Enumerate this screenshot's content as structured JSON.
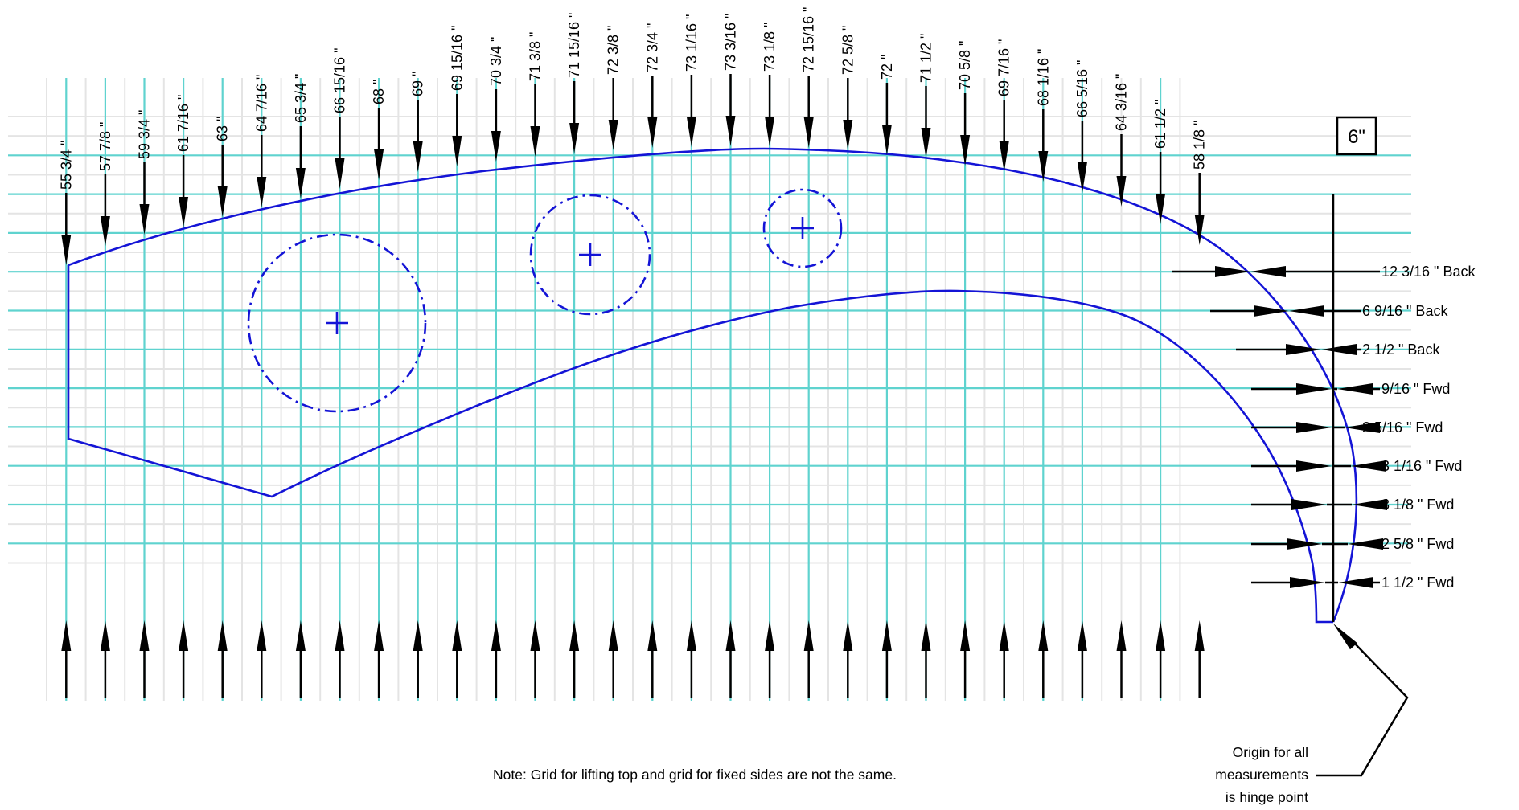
{
  "scale_label": "6\"",
  "top_measurements": [
    "55 3/4 \"",
    "57 7/8 \"",
    "59 3/4 \"",
    "61 7/16 \"",
    "63 \"",
    "64 7/16 \"",
    "65 3/4 \"",
    "66 15/16 \"",
    "68 \"",
    "69 \"",
    "69 15/16 \"",
    "70 3/4 \"",
    "71 3/8 \"",
    "71 15/16 \"",
    "72 3/8 \"",
    "72 3/4 \"",
    "73 1/16 \"",
    "73 3/16 \"",
    "73 1/8 \"",
    "72 15/16 \"",
    "72 5/8 \"",
    "72 \"",
    "71 1/2 \"",
    "70 5/8 \"",
    "69 7/16 \"",
    "68 1/16 \"",
    "66 5/16 \"",
    "64 3/16 \"",
    "61 1/2 \"",
    "58 1/8 \""
  ],
  "side_measurements": [
    "12 3/16 \" Back",
    "6 9/16 \" Back",
    "2 1/2 \" Back",
    "9/16 \" Fwd",
    "2 5/16 \" Fwd",
    "3 1/16 \" Fwd",
    "3 1/8 \" Fwd",
    "2 5/8 \" Fwd",
    "1 1/2 \" Fwd"
  ],
  "note": "Note: Grid for lifting top and grid for fixed sides are not the same.",
  "origin_label": [
    "Origin for all",
    "measurements",
    "is hinge point"
  ],
  "colors": {
    "grid_major": "#5fd3cf",
    "grid_minor": "#e4e4e4",
    "outline": "#1414d6",
    "dimension": "#000000"
  }
}
